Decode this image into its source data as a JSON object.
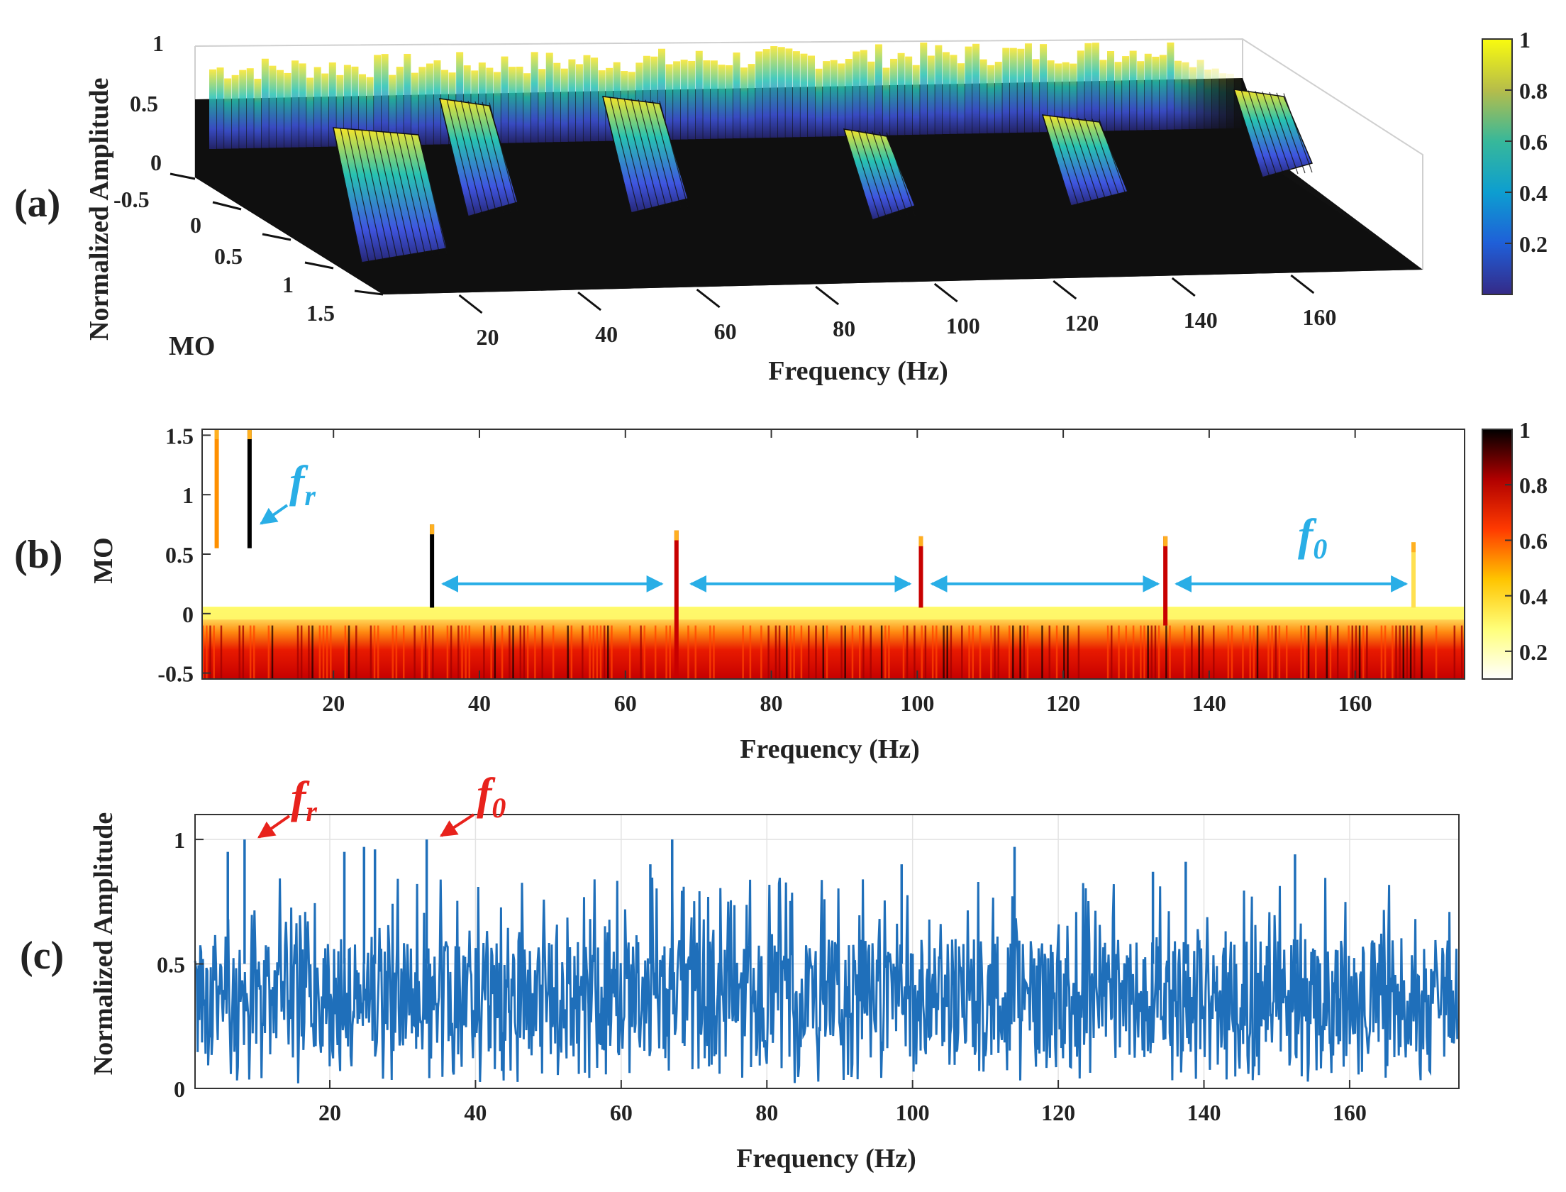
{
  "chart_data": [
    {
      "panel_label": "(a)",
      "type": "surface3d",
      "zlabel": "Normalized Amplitude",
      "ylabel": "MO",
      "xlabel": "Frequency (Hz)",
      "x_ticks": [
        "20",
        "40",
        "60",
        "80",
        "100",
        "120",
        "140",
        "160"
      ],
      "y_ticks": [
        "-0.5",
        "0",
        "0.5",
        "1",
        "1.5"
      ],
      "z_ticks": [
        "1",
        "0.5",
        "0"
      ],
      "xlim": [
        0,
        175
      ],
      "ylim": [
        -0.5,
        1.5
      ],
      "zlim": [
        0,
        1
      ],
      "colormap": "parula",
      "colorbar_ticks": [
        "1",
        "0.8",
        "0.6",
        "0.4",
        "0.2"
      ],
      "ridges": [
        {
          "x": 8,
          "y_top": 1.5,
          "amplitude": 1.0
        },
        {
          "x": 33,
          "y_top": 0.7,
          "amplitude": 0.9
        },
        {
          "x": 67,
          "y_top": 0.6,
          "amplitude": 0.85
        },
        {
          "x": 100,
          "y_top": 0.6,
          "amplitude": 0.7
        },
        {
          "x": 134,
          "y_top": 0.6,
          "amplitude": 0.7
        },
        {
          "x": 168,
          "y_top": 0.5,
          "amplitude": 0.6
        }
      ],
      "colors": {
        "dark": "#1a1a1a",
        "ridge_top": "#f9e527",
        "ridge_mid": "#27c2b2",
        "ridge_low": "#4a4ee0",
        "edge": "#111111"
      }
    },
    {
      "panel_label": "(b)",
      "type": "heatmap",
      "ylabel": "MO",
      "xlabel": "Frequency (Hz)",
      "x_ticks": [
        "20",
        "40",
        "60",
        "80",
        "100",
        "120",
        "140",
        "160"
      ],
      "y_ticks": [
        "1.5",
        "1",
        "0.5",
        "0",
        "-0.5"
      ],
      "xlim": [
        2,
        175
      ],
      "ylim": [
        -0.55,
        1.55
      ],
      "colormap": "hot (reversed)",
      "colorbar_ticks": [
        "1",
        "0.8",
        "0.6",
        "0.4",
        "0.2"
      ],
      "annotations": {
        "fr_letter": "f",
        "fr_sub": "r",
        "f0_letter": "f",
        "f0_sub": "0"
      },
      "lines": [
        {
          "x": 4,
          "y_from": 0.55,
          "y_to": 1.55,
          "intensity": 0.45
        },
        {
          "x": 8.5,
          "y_from": 0.55,
          "y_to": 1.55,
          "intensity": 1.0
        },
        {
          "x": 33.5,
          "y_from": 0.05,
          "y_to": 0.75,
          "intensity": 1.0
        },
        {
          "x": 67,
          "y_from": -0.55,
          "y_to": 0.7,
          "intensity": 0.85
        },
        {
          "x": 100.5,
          "y_from": 0.05,
          "y_to": 0.65,
          "intensity": 0.75
        },
        {
          "x": 134,
          "y_from": -0.1,
          "y_to": 0.65,
          "intensity": 0.75
        },
        {
          "x": 168,
          "y_from": 0.05,
          "y_to": 0.6,
          "intensity": 0.3
        }
      ],
      "arrows": [
        {
          "x1": 35,
          "x2": 65
        },
        {
          "x1": 69,
          "x2": 99
        },
        {
          "x1": 102,
          "x2": 133
        },
        {
          "x1": 135.5,
          "x2": 167
        }
      ],
      "colors": {
        "annotation": "#29aee6",
        "arrow": "#29aee6"
      }
    },
    {
      "panel_label": "(c)",
      "type": "line",
      "ylabel": "Normalized Amplitude",
      "xlabel": "Frequency (Hz)",
      "x_ticks": [
        "20",
        "40",
        "60",
        "80",
        "100",
        "120",
        "140",
        "160"
      ],
      "y_ticks": [
        "1",
        "0.5",
        "0"
      ],
      "xlim": [
        1.5,
        175
      ],
      "ylim": [
        0,
        1.1
      ],
      "grid": true,
      "noise_band": {
        "low": 0.12,
        "high": 0.6
      },
      "peaks": [
        {
          "x": 8.3,
          "y": 1.0
        },
        {
          "x": 33.3,
          "y": 1.0
        },
        {
          "x": 67,
          "y": 1.0
        },
        {
          "x": 114,
          "y": 0.97
        },
        {
          "x": 6,
          "y": 0.95
        },
        {
          "x": 24.7,
          "y": 0.97
        },
        {
          "x": 26.2,
          "y": 0.96
        },
        {
          "x": 22,
          "y": 0.95
        },
        {
          "x": 64,
          "y": 0.9
        },
        {
          "x": 137.5,
          "y": 0.91
        },
        {
          "x": 152.5,
          "y": 0.94
        },
        {
          "x": 98.5,
          "y": 0.9
        },
        {
          "x": 133,
          "y": 0.87
        }
      ],
      "annotations": {
        "fr_letter": "f",
        "fr_sub": "r",
        "f0_letter": "f",
        "f0_sub": "0"
      },
      "colors": {
        "line": "#1f6fba",
        "annotation": "#e8221c"
      }
    }
  ]
}
